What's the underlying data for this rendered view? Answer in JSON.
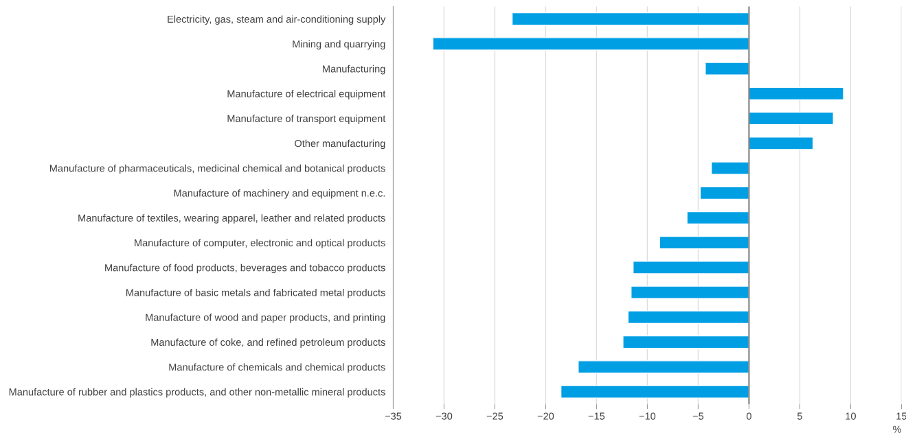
{
  "chart_data": {
    "type": "bar",
    "orientation": "horizontal",
    "xlabel": "%",
    "categories": [
      "Electricity, gas, steam and air-conditioning supply",
      "Mining and quarrying",
      "Manufacturing",
      "Manufacture of electrical equipment",
      "Manufacture of transport equipment",
      "Other manufacturing",
      "Manufacture of pharmaceuticals, medicinal chemical and botanical products",
      "Manufacture of machinery and equipment n.e.c.",
      "Manufacture of textiles, wearing apparel, leather and related products",
      "Manufacture of computer, electronic and optical products",
      "Manufacture of food products, beverages and tobacco products",
      "Manufacture of basic metals and fabricated metal products",
      "Manufacture of wood and paper products, and printing",
      "Manufacture of coke, and refined petroleum products",
      "Manufacture of chemicals and chemical products",
      "Manufacture of rubber and plastics products, and other non-metallic mineral products"
    ],
    "values": [
      -23.3,
      -31.1,
      -4.3,
      9.3,
      8.3,
      6.3,
      -3.7,
      -4.8,
      -6.1,
      -8.8,
      -11.4,
      -11.6,
      -11.9,
      -12.4,
      -16.8,
      -18.5
    ],
    "color": "#009fe3",
    "xlim": [
      -35,
      15
    ],
    "xticks": [
      {
        "value": -35,
        "label": "−35"
      },
      {
        "value": -30,
        "label": "−30"
      },
      {
        "value": -25,
        "label": "−25"
      },
      {
        "value": -20,
        "label": "−20"
      },
      {
        "value": -15,
        "label": "−15"
      },
      {
        "value": -10,
        "label": "−10"
      },
      {
        "value": -5,
        "label": "−5"
      },
      0,
      5,
      10,
      15
    ],
    "ref_lines": [
      {
        "axis": "x",
        "value": 0,
        "color": "#808080"
      }
    ],
    "grid": "x",
    "legend": false
  }
}
